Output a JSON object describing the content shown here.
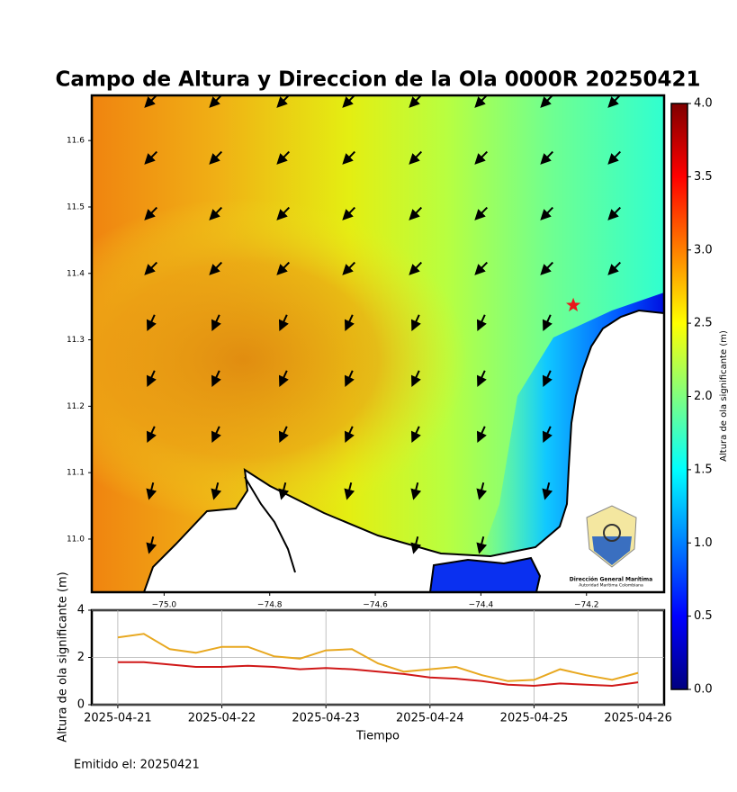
{
  "chart_data": [
    {
      "type": "map",
      "title": "Campo de Altura y Direccion de la Ola 0000R 20250421",
      "xlim": [
        -75.137,
        -74.053
      ],
      "ylim": [
        10.92,
        11.668
      ],
      "xticks": [
        {
          "value": -75,
          "label": "−75.0"
        },
        {
          "value": -74.8,
          "label": "−74.8"
        },
        {
          "value": -74.6,
          "label": "−74.6"
        },
        {
          "value": -74.4,
          "label": "−74.4"
        },
        {
          "value": -74.2,
          "label": "−74.2"
        }
      ],
      "yticks": [
        {
          "value": 11,
          "label": "11.0"
        },
        11.1,
        11.2,
        11.3,
        11.4,
        11.5,
        11.6
      ],
      "colorbar": {
        "label": "Altura de ola significante (m)",
        "lim": [
          0,
          4
        ],
        "ticks": [
          {
            "value": 0,
            "label": "0.0"
          },
          0.5,
          {
            "value": 1,
            "label": "1.0"
          },
          1.5,
          {
            "value": 2,
            "label": "2.0"
          },
          2.5,
          {
            "value": 3,
            "label": "3.0"
          },
          3.5,
          {
            "value": 4,
            "label": "4.0"
          }
        ]
      },
      "marker": {
        "x": -74.225,
        "y": 11.352,
        "color": "#e8191a"
      },
      "logo_text": [
        "Dirección General Marítima",
        "Autoridad Marítima Colombiana"
      ]
    },
    {
      "type": "line",
      "ylabel": "Altura de ola significante (m)",
      "xlabel": "Tiempo",
      "x": [
        0,
        0.25,
        0.5,
        0.75,
        1,
        1.25,
        1.5,
        1.75,
        2,
        2.25,
        2.5,
        2.75,
        3,
        3.25,
        3.5,
        3.75,
        4,
        4.25,
        4.5,
        4.75,
        5
      ],
      "xlim": [
        -0.25,
        5.25
      ],
      "xticks": [
        {
          "value": 0,
          "label": "2025-04-21"
        },
        {
          "value": 1,
          "label": "2025-04-22"
        },
        {
          "value": 2,
          "label": "2025-04-23"
        },
        {
          "value": 3,
          "label": "2025-04-24"
        },
        {
          "value": 4,
          "label": "2025-04-25"
        },
        {
          "value": 5,
          "label": "2025-04-26"
        }
      ],
      "ylim": [
        0,
        4
      ],
      "yticks": [
        0,
        2,
        4
      ],
      "grid": true,
      "series": [
        {
          "color": "#e8a820",
          "values": [
            2.85,
            3.0,
            2.35,
            2.2,
            2.45,
            2.45,
            2.05,
            1.95,
            2.3,
            2.35,
            1.75,
            1.4,
            1.5,
            1.6,
            1.25,
            1.0,
            1.05,
            1.5,
            1.25,
            1.05,
            1.35
          ]
        },
        {
          "color": "#d01818",
          "values": [
            1.8,
            1.8,
            1.7,
            1.6,
            1.6,
            1.65,
            1.6,
            1.5,
            1.55,
            1.5,
            1.4,
            1.3,
            1.15,
            1.1,
            1.0,
            0.85,
            0.8,
            0.9,
            0.85,
            0.8,
            0.95
          ]
        }
      ]
    }
  ],
  "footer": "Emitido el: 20250421"
}
